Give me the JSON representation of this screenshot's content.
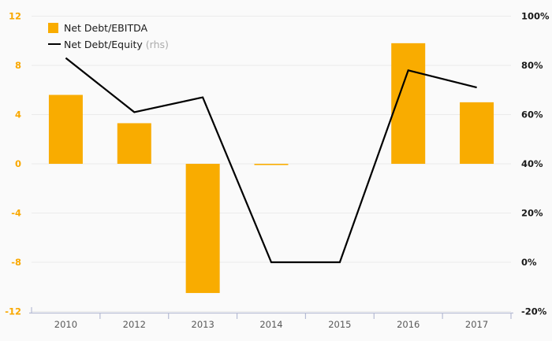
{
  "legend": {
    "items": [
      {
        "label": "Net Debt/EBITDA",
        "suffix": "",
        "swatch": "square"
      },
      {
        "label": "Net Debt/Equity",
        "suffix": " (rhs)",
        "swatch": "line"
      }
    ]
  },
  "colors": {
    "bar": "#F9AC00",
    "line": "#000000",
    "grid": "#EBEBEB",
    "axis": "#B6BCD4",
    "left_tick_label": "#F9A800",
    "right_tick_label": "#1A1A1A",
    "x_tick_label": "#595959",
    "rhs_note": "#ABABAB",
    "background": "#FAFAFA"
  },
  "chart_data": {
    "type": "bar+line",
    "title": "",
    "categories": [
      "2010",
      "2012",
      "2013",
      "2014",
      "2015",
      "2016",
      "2017"
    ],
    "series": [
      {
        "name": "Net Debt/EBITDA",
        "type": "bar",
        "axis": "left",
        "values": [
          5.6,
          3.3,
          -10.5,
          -0.1,
          null,
          9.8,
          5.0
        ]
      },
      {
        "name": "Net Debt/Equity (rhs)",
        "type": "line",
        "axis": "right",
        "values": [
          83,
          61,
          67,
          0,
          0,
          78,
          71
        ]
      }
    ],
    "left_axis": {
      "range": [
        -12,
        12
      ],
      "ticks": [
        12,
        8,
        4,
        0,
        -4,
        -8,
        -12
      ]
    },
    "right_axis": {
      "range": [
        -20,
        100
      ],
      "tick_values": [
        100,
        80,
        60,
        40,
        20,
        0,
        -20
      ],
      "ticks": [
        "100%",
        "80%",
        "60%",
        "40%",
        "20%",
        "0%",
        "-20%"
      ]
    },
    "grid": true,
    "legend_position": "top-left"
  }
}
